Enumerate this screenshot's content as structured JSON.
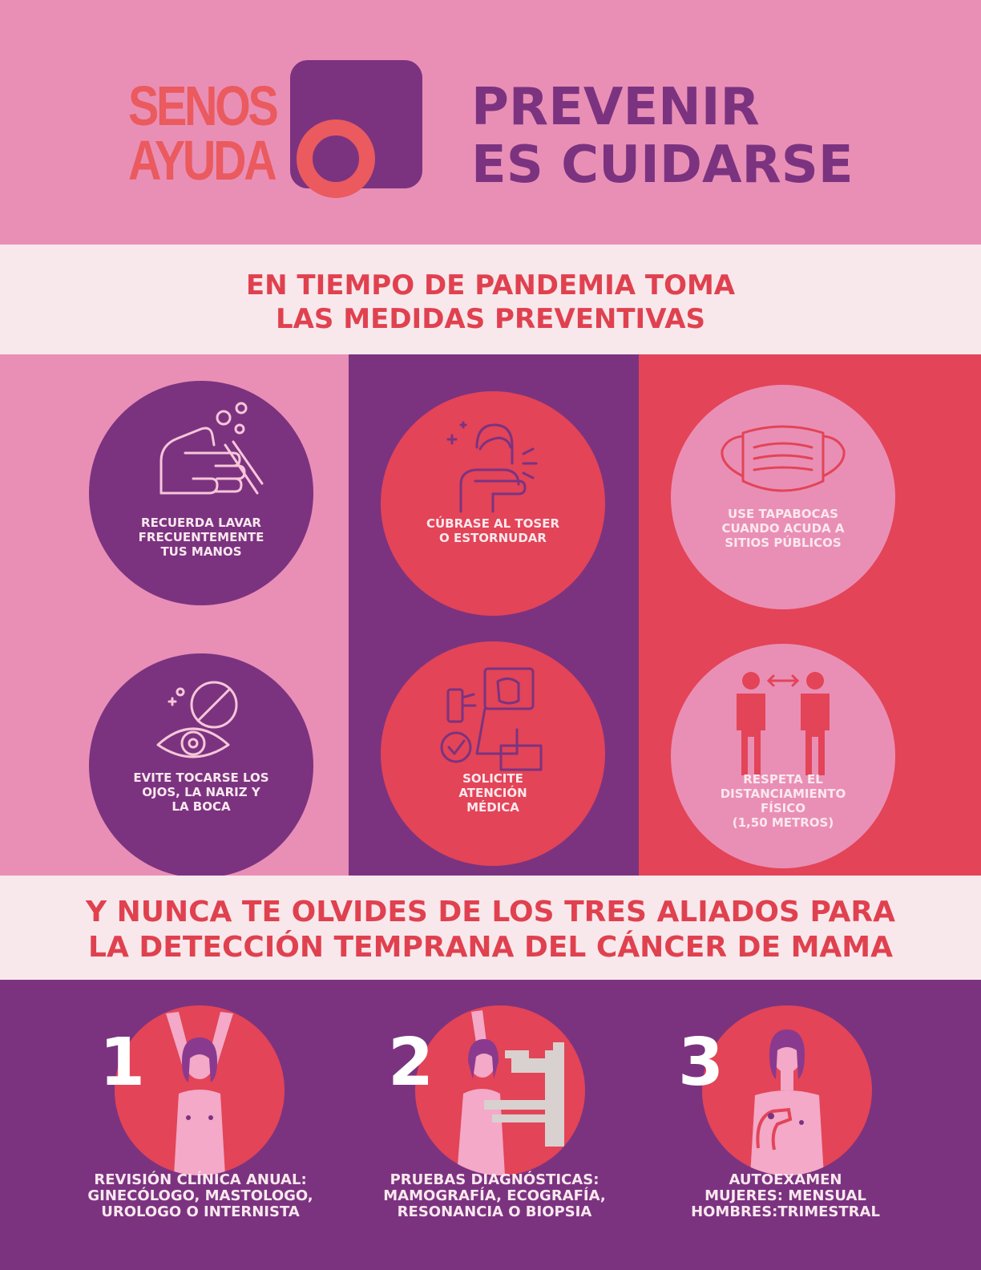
{
  "logo": {
    "line1": "SENOS",
    "line2": "AYUDA"
  },
  "headline": {
    "line1": "PREVENIR",
    "line2": "ES CUIDARSE"
  },
  "section1": {
    "line1": "EN TIEMPO DE PANDEMIA TOMA",
    "line2": "LAS MEDIDAS PREVENTIVAS"
  },
  "measures": [
    {
      "label": "RECUERDA LAVAR\nFRECUENTEMENTE\nTUS MANOS",
      "icon": "hand-washing-icon"
    },
    {
      "label": "CÚBRASE AL TOSER\nO ESTORNUDAR",
      "icon": "cough-elbow-icon"
    },
    {
      "label": "USE TAPABOCAS\nCUANDO ACUDA A\nSITIOS PÚBLICOS",
      "icon": "face-mask-icon"
    },
    {
      "label": "EVITE TOCARSE LOS\nOJOS, LA NARIZ Y\nLA BOCA",
      "icon": "no-touch-eye-icon"
    },
    {
      "label": "SOLICITE\nATENCIÓN\nMÉDICA",
      "icon": "medical-check-icon"
    },
    {
      "label": "RESPETA  EL\nDISTANCIAMIENTO\nFÍSICO\n(1,50  METROS)",
      "icon": "social-distance-icon"
    }
  ],
  "section2": {
    "line1": "Y NUNCA TE OLVIDES DE LOS TRES ALIADOS PARA",
    "line2": "LA DETECCIÓN TEMPRANA DEL CÁNCER DE MAMA"
  },
  "allies": [
    {
      "number": "1",
      "label": "REVISIÓN CLÍNICA ANUAL:\nGINECÓLOGO, MASTOLOGO,\nUROLOGO O INTERNISTA"
    },
    {
      "number": "2",
      "label": "PRUEBAS DIAGNÓSTICAS:\nMAMOGRAFÍA, ECOGRAFÍA,\nRESONANCIA O BIOPSIA"
    },
    {
      "number": "3",
      "label": "AUTOEXAMEN\nMUJERES: MENSUAL\nHOMBRES:TRIMESTRAL"
    }
  ],
  "colors": {
    "pink": "#e98fb6",
    "purple": "#7b3380",
    "red": "#e34457",
    "coral": "#ea5a5e",
    "cream": "#f8e8ec"
  }
}
